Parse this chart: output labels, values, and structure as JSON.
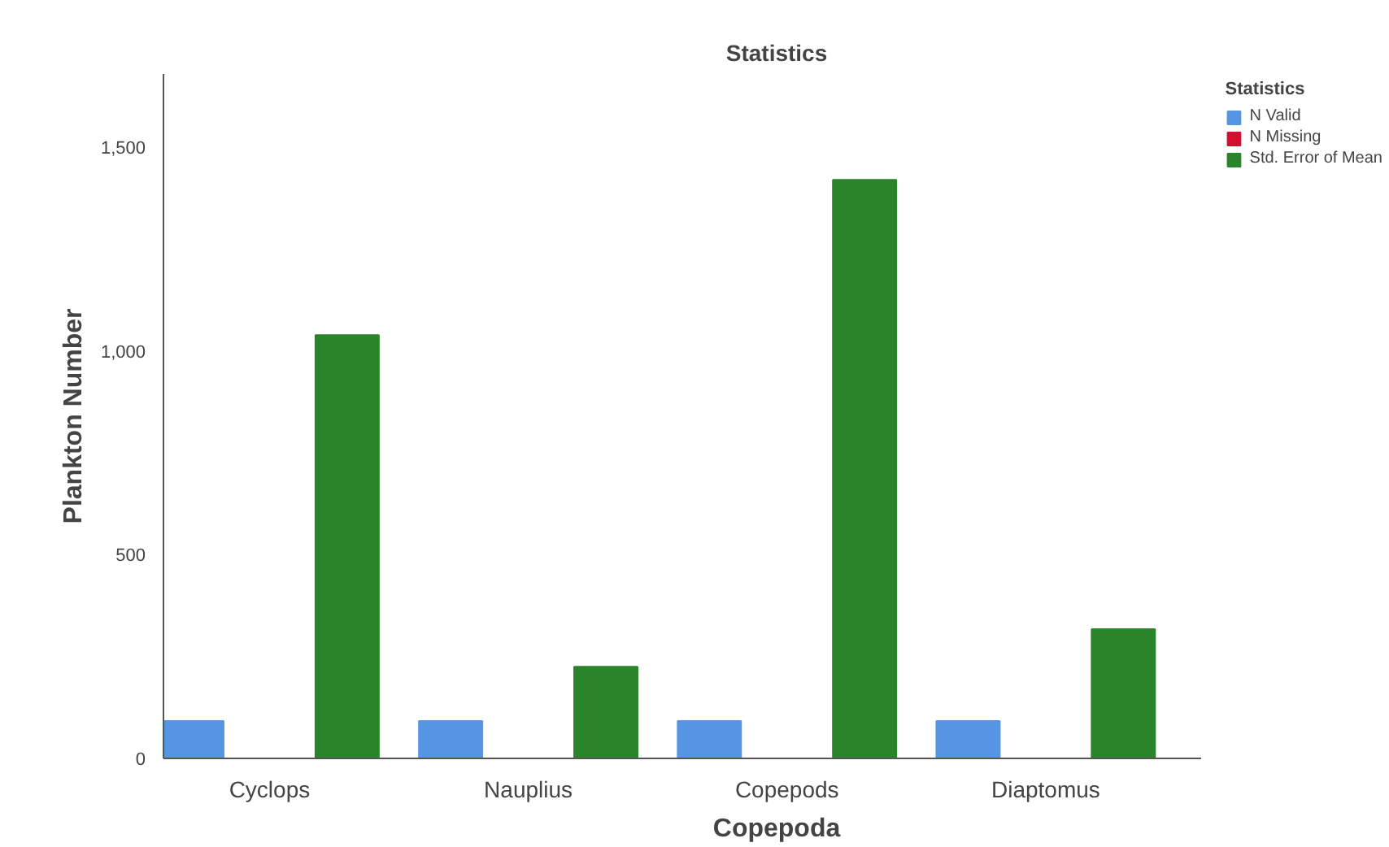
{
  "chart_data": {
    "type": "bar",
    "title": "Statistics",
    "xlabel": "Copepoda",
    "ylabel": "Plankton Number",
    "legend_title": "Statistics",
    "categories": [
      "Cyclops",
      "Nauplius",
      "Copepods",
      "Diaptomus"
    ],
    "series": [
      {
        "name": "N Valid",
        "color": "#5595e3",
        "values": [
          92,
          92,
          92,
          92
        ]
      },
      {
        "name": "N Missing",
        "color": "#d40f33",
        "values": [
          0,
          0,
          0,
          0
        ]
      },
      {
        "name": "Std. Error of Mean",
        "color": "#2a852a",
        "values": [
          1039,
          225,
          1420,
          317
        ]
      }
    ],
    "ylim": [
      0,
      1680
    ],
    "yticks": [
      {
        "value": 0,
        "label": "0"
      },
      {
        "value": 500,
        "label": "500"
      },
      {
        "value": 1000,
        "label": "1,000"
      },
      {
        "value": 1500,
        "label": "1,500"
      }
    ],
    "grid": false,
    "legend": "top right"
  }
}
